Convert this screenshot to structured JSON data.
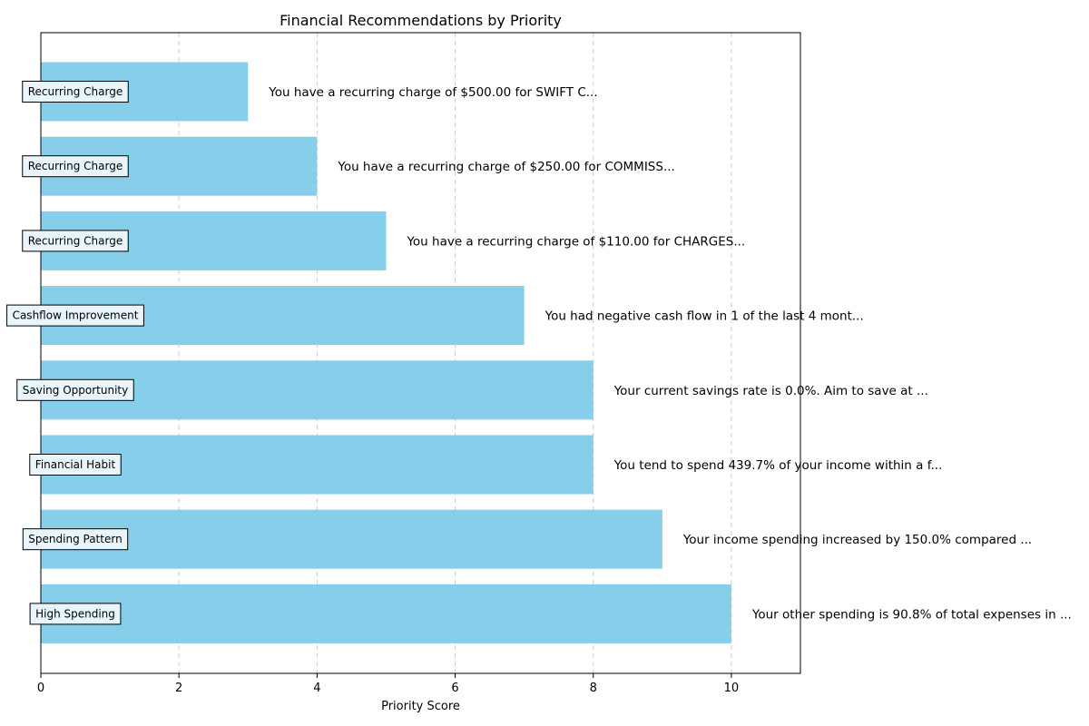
{
  "chart_data": {
    "type": "bar",
    "orientation": "horizontal",
    "title": "Financial Recommendations by Priority",
    "xlabel": "Priority Score",
    "ylabel": "",
    "xlim": [
      0,
      11
    ],
    "xticks": [
      0,
      2,
      4,
      6,
      8,
      10
    ],
    "grid": "x-dashed",
    "bar_color": "#87CEEB",
    "label_box_color": "#E8F6FC",
    "items": [
      {
        "category": "Recurring Charge",
        "value": 3,
        "message": "You have a recurring charge of $500.00 for SWIFT C..."
      },
      {
        "category": "Recurring Charge",
        "value": 4,
        "message": "You have a recurring charge of $250.00 for COMMISS..."
      },
      {
        "category": "Recurring Charge",
        "value": 5,
        "message": "You have a recurring charge of $110.00 for CHARGES..."
      },
      {
        "category": "Cashflow Improvement",
        "value": 7,
        "message": "You had negative cash flow in 1 of the last 4 mont..."
      },
      {
        "category": "Saving Opportunity",
        "value": 8,
        "message": "Your current savings rate is 0.0%. Aim to save at ..."
      },
      {
        "category": "Financial Habit",
        "value": 8,
        "message": "You tend to spend 439.7% of your income within a f..."
      },
      {
        "category": "Spending Pattern",
        "value": 9,
        "message": "Your income spending increased by 150.0% compared ..."
      },
      {
        "category": "High Spending",
        "value": 10,
        "message": "Your other spending is 90.8% of total expenses in ..."
      }
    ]
  }
}
